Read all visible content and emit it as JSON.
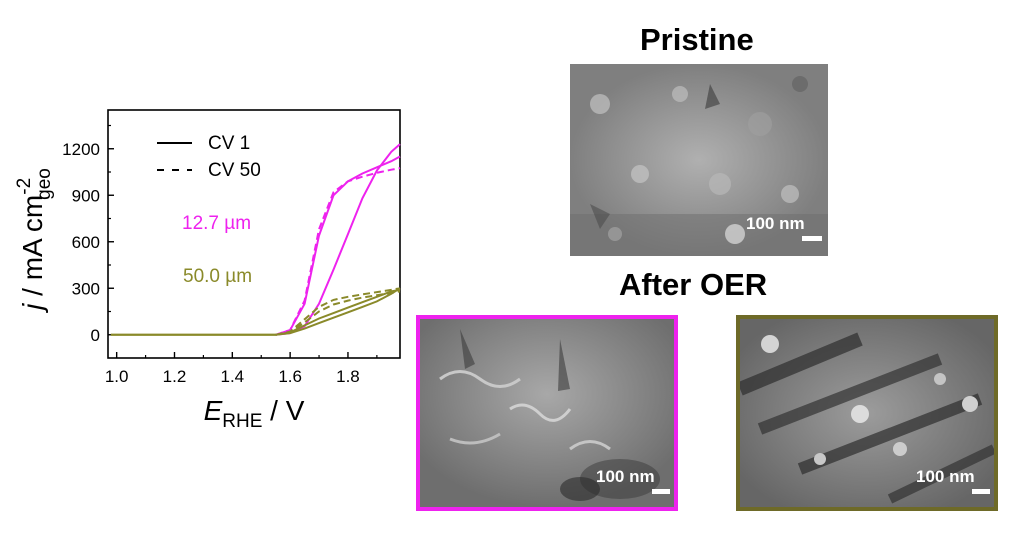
{
  "chart_data": {
    "type": "line",
    "xlabel_main": "E",
    "xlabel_sub": "RHE",
    "xlabel_unit": " / V",
    "ylabel_main": "j",
    "ylabel_unit": " / mA cm",
    "ylabel_sup": "-2",
    "ylabel_sub": "geo",
    "xlim": [
      0.97,
      1.98
    ],
    "ylim": [
      -150,
      1450
    ],
    "xticks": [
      "1.0",
      "1.2",
      "1.4",
      "1.6",
      "1.8"
    ],
    "yticks": [
      "0",
      "300",
      "600",
      "900",
      "1200"
    ],
    "legend": [
      {
        "label": "CV 1",
        "style": "solid"
      },
      {
        "label": "CV 50",
        "style": "dashed"
      }
    ],
    "annotations": [
      {
        "text": "12.7 µm",
        "color": "#ee22ee"
      },
      {
        "text": "50.0 µm",
        "color": "#8a8a2a"
      }
    ],
    "series": [
      {
        "group": "12.7 µm",
        "cycle": "CV 1",
        "color": "#ee22ee",
        "style": "solid",
        "x": [
          1.55,
          1.6,
          1.65,
          1.7,
          1.75,
          1.8,
          1.85,
          1.9,
          1.95,
          1.98
        ],
        "y": [
          0,
          10,
          55,
          200,
          420,
          650,
          880,
          1060,
          1180,
          1230
        ]
      },
      {
        "group": "12.7 µm",
        "cycle": "CV 1",
        "color": "#ee22ee",
        "style": "solid",
        "x": [
          1.55,
          1.6,
          1.65,
          1.7,
          1.75,
          1.8,
          1.85,
          1.9,
          1.95,
          1.98
        ],
        "y": [
          0,
          30,
          200,
          640,
          900,
          990,
          1040,
          1080,
          1120,
          1150
        ]
      },
      {
        "group": "12.7 µm",
        "cycle": "CV 50",
        "color": "#ee22ee",
        "style": "dashed",
        "x": [
          1.55,
          1.6,
          1.65,
          1.7,
          1.75,
          1.8,
          1.85,
          1.9,
          1.95,
          1.98
        ],
        "y": [
          0,
          30,
          220,
          680,
          920,
          990,
          1020,
          1045,
          1065,
          1075
        ]
      },
      {
        "group": "50.0 µm",
        "cycle": "CV 1",
        "color": "#8a8a2a",
        "style": "solid",
        "x": [
          0.98,
          1.5,
          1.55,
          1.6,
          1.65,
          1.7,
          1.75,
          1.8,
          1.85,
          1.9,
          1.95,
          1.98
        ],
        "y": [
          0,
          0,
          0,
          10,
          40,
          75,
          110,
          145,
          180,
          215,
          265,
          300
        ]
      },
      {
        "group": "50.0 µm",
        "cycle": "CV 1",
        "color": "#8a8a2a",
        "style": "solid",
        "x": [
          0.98,
          1.5,
          1.55,
          1.6,
          1.65,
          1.7,
          1.75,
          1.8,
          1.85,
          1.9,
          1.95,
          1.98
        ],
        "y": [
          0,
          0,
          0,
          15,
          60,
          105,
          140,
          175,
          210,
          245,
          280,
          290
        ]
      },
      {
        "group": "50.0 µm",
        "cycle": "CV 50",
        "color": "#8a8a2a",
        "style": "dashed",
        "x": [
          1.55,
          1.6,
          1.65,
          1.7,
          1.75,
          1.8,
          1.85,
          1.9,
          1.95,
          1.98
        ],
        "y": [
          0,
          20,
          100,
          180,
          225,
          245,
          260,
          275,
          290,
          300
        ]
      },
      {
        "group": "50.0 µm",
        "cycle": "CV 50",
        "color": "#8a8a2a",
        "style": "dashed",
        "x": [
          1.55,
          1.6,
          1.65,
          1.7,
          1.75,
          1.8,
          1.85,
          1.9,
          1.95,
          1.98
        ],
        "y": [
          0,
          15,
          80,
          150,
          195,
          220,
          240,
          255,
          270,
          280
        ]
      }
    ]
  },
  "images": {
    "pristine": {
      "title": "Pristine",
      "scale_label": "100 nm"
    },
    "after_oer_title": "After OER",
    "after_thin": {
      "scale_label": "100 nm",
      "frame_color": "#ee22ee"
    },
    "after_thick": {
      "scale_label": "100 nm",
      "frame_color": "#6e6a28"
    }
  }
}
